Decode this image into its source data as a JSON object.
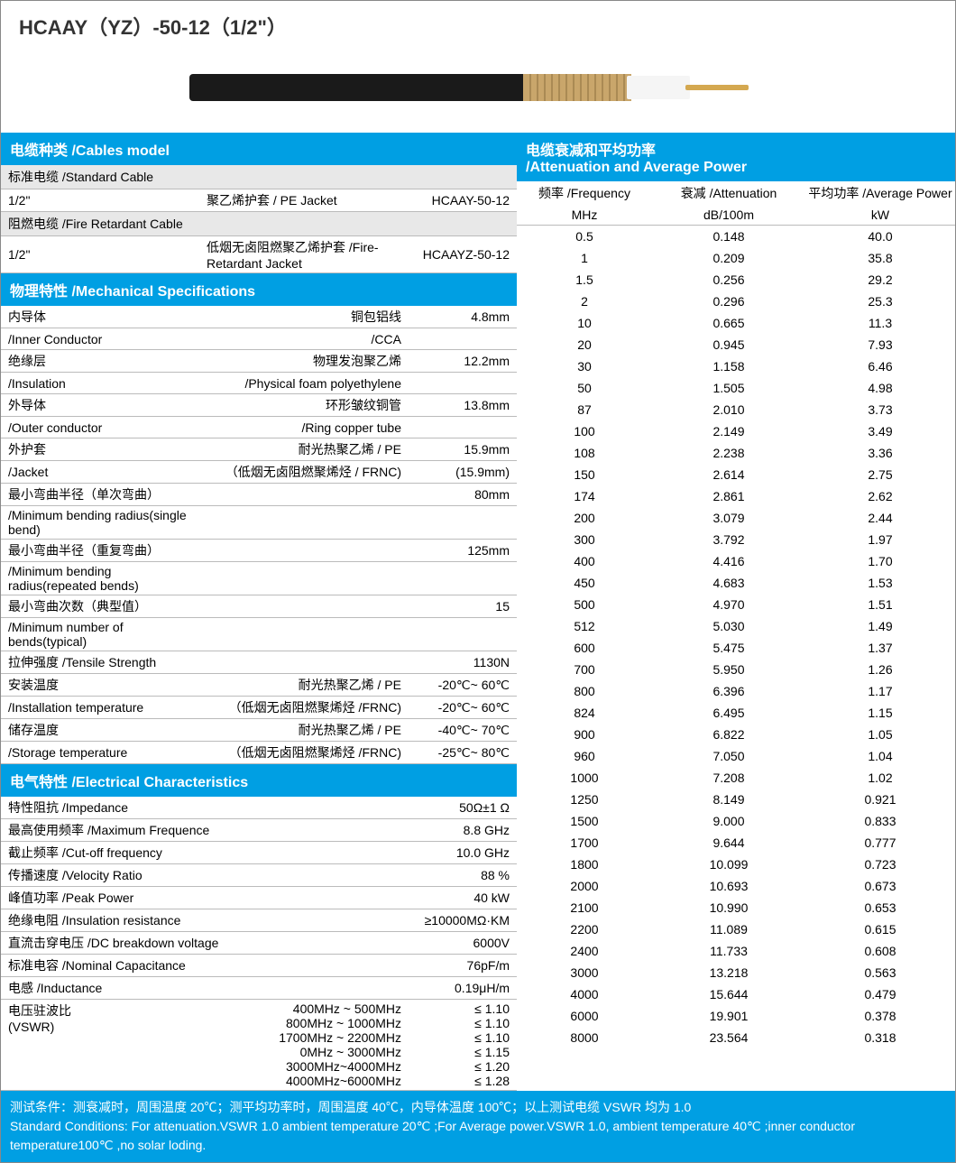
{
  "title": "HCAAY（YZ）-50-12（1/2\"）",
  "cables_header": "电缆种类 /Cables model",
  "std_cable": "标准电缆 /Standard Cable",
  "std_row": {
    "size": "1/2\"",
    "jacket": "聚乙烯护套 / PE Jacket",
    "model": "HCAAY-50-12"
  },
  "fire_cable": "阻燃电缆 /Fire Retardant Cable",
  "fire_row": {
    "size": "1/2\"",
    "jacket": "低烟无卤阻燃聚乙烯护套 /Fire-Retardant Jacket",
    "model": "HCAAYZ-50-12"
  },
  "mech_header": "物理特性 /Mechanical Specifications",
  "mech": [
    {
      "l": "内导体",
      "m": "铜包铝线",
      "r": "4.8mm"
    },
    {
      "l": "/Inner Conductor",
      "m": "/CCA",
      "r": ""
    },
    {
      "l": "绝缘层",
      "m": "物理发泡聚乙烯",
      "r": "12.2mm"
    },
    {
      "l": "/Insulation",
      "m": "/Physical foam polyethylene",
      "r": ""
    },
    {
      "l": "外导体",
      "m": "环形皱纹铜管",
      "r": "13.8mm"
    },
    {
      "l": "/Outer conductor",
      "m": "/Ring copper tube",
      "r": ""
    },
    {
      "l": "外护套",
      "m": "耐光热聚乙烯 / PE",
      "r": "15.9mm"
    },
    {
      "l": "/Jacket",
      "m": "（低烟无卤阻燃聚烯烃 / FRNC)",
      "r": "(15.9mm)"
    },
    {
      "l": "最小弯曲半径（单次弯曲）",
      "m": "",
      "r": "80mm"
    },
    {
      "l": "/Minimum bending radius(single bend)",
      "m": "",
      "r": ""
    },
    {
      "l": "最小弯曲半径（重复弯曲）",
      "m": "",
      "r": "125mm"
    },
    {
      "l": "/Minimum bending radius(repeated bends)",
      "m": "",
      "r": ""
    },
    {
      "l": "最小弯曲次数（典型值）",
      "m": "",
      "r": "15"
    },
    {
      "l": "/Minimum number of bends(typical)",
      "m": "",
      "r": ""
    },
    {
      "l": "拉伸强度 /Tensile  Strength",
      "m": "",
      "r": "1130N"
    },
    {
      "l": "安装温度",
      "m": "耐光热聚乙烯 / PE",
      "r": "-20℃~ 60℃"
    },
    {
      "l": "/Installation temperature",
      "m": "（低烟无卤阻燃聚烯烃 /FRNC)",
      "r": "-20℃~ 60℃"
    },
    {
      "l": "储存温度",
      "m": "耐光热聚乙烯 / PE",
      "r": "-40℃~ 70℃"
    },
    {
      "l": "/Storage temperature",
      "m": "（低烟无卤阻燃聚烯烃 /FRNC)",
      "r": "-25℃~ 80℃"
    }
  ],
  "elec_header": "电气特性 /Electrical Characteristics",
  "elec": [
    {
      "l": "特性阻抗 /Impedance",
      "r": "50Ω±1 Ω"
    },
    {
      "l": "最高使用频率 /Maximum Frequence",
      "r": "8.8 GHz"
    },
    {
      "l": "截止频率 /Cut-off frequency",
      "r": "10.0 GHz"
    },
    {
      "l": "传播速度 /Velocity Ratio",
      "r": "88 %"
    },
    {
      "l": "峰值功率 /Peak Power",
      "r": "40 kW"
    },
    {
      "l": "绝缘电阻 /Insulation resistance",
      "r": "≥10000MΩ·KM"
    },
    {
      "l": "直流击穿电压 /DC breakdown voltage",
      "r": "6000V"
    },
    {
      "l": "标准电容 /Nominal Capacitance",
      "r": "76pF/m"
    },
    {
      "l": "电感 /Inductance",
      "r": "0.19μH/m"
    }
  ],
  "vswr_label1": "电压驻波比",
  "vswr_label2": "(VSWR)",
  "vswr": [
    {
      "f": "400MHz ~ 500MHz",
      "v": "≤ 1.10"
    },
    {
      "f": "800MHz ~ 1000MHz",
      "v": "≤ 1.10"
    },
    {
      "f": "1700MHz ~ 2200MHz",
      "v": "≤ 1.10"
    },
    {
      "f": "0MHz ~ 3000MHz",
      "v": "≤ 1.15"
    },
    {
      "f": "3000MHz~4000MHz",
      "v": "≤ 1.20"
    },
    {
      "f": "4000MHz~6000MHz",
      "v": "≤ 1.28"
    }
  ],
  "att_header": "电缆衰减和平均功率\n/Attenuation and Average Power",
  "att_cols": {
    "c1": "频率 /Frequency",
    "c2": "衰减 /Attenuation",
    "c3": "平均功率 /Average Power"
  },
  "att_units": {
    "c1": "MHz",
    "c2": "dB/100m",
    "c3": "kW"
  },
  "att_data": [
    [
      "0.5",
      "0.148",
      "40.0"
    ],
    [
      "1",
      "0.209",
      "35.8"
    ],
    [
      "1.5",
      "0.256",
      "29.2"
    ],
    [
      "2",
      "0.296",
      "25.3"
    ],
    [
      "10",
      "0.665",
      "11.3"
    ],
    [
      "20",
      "0.945",
      "7.93"
    ],
    [
      "30",
      "1.158",
      "6.46"
    ],
    [
      "50",
      "1.505",
      "4.98"
    ],
    [
      "87",
      "2.010",
      "3.73"
    ],
    [
      "100",
      "2.149",
      "3.49"
    ],
    [
      "108",
      "2.238",
      "3.36"
    ],
    [
      "150",
      "2.614",
      "2.75"
    ],
    [
      "174",
      "2.861",
      "2.62"
    ],
    [
      "200",
      "3.079",
      "2.44"
    ],
    [
      "300",
      "3.792",
      "1.97"
    ],
    [
      "400",
      "4.416",
      "1.70"
    ],
    [
      "450",
      "4.683",
      "1.53"
    ],
    [
      "500",
      "4.970",
      "1.51"
    ],
    [
      "512",
      "5.030",
      "1.49"
    ],
    [
      "600",
      "5.475",
      "1.37"
    ],
    [
      "700",
      "5.950",
      "1.26"
    ],
    [
      "800",
      "6.396",
      "1.17"
    ],
    [
      "824",
      "6.495",
      "1.15"
    ],
    [
      "900",
      "6.822",
      "1.05"
    ],
    [
      "960",
      "7.050",
      "1.04"
    ],
    [
      "1000",
      "7.208",
      "1.02"
    ],
    [
      "1250",
      "8.149",
      "0.921"
    ],
    [
      "1500",
      "9.000",
      "0.833"
    ],
    [
      "1700",
      "9.644",
      "0.777"
    ],
    [
      "1800",
      "10.099",
      "0.723"
    ],
    [
      "2000",
      "10.693",
      "0.673"
    ],
    [
      "2100",
      "10.990",
      "0.653"
    ],
    [
      "2200",
      "11.089",
      "0.615"
    ],
    [
      "2400",
      "11.733",
      "0.608"
    ],
    [
      "3000",
      "13.218",
      "0.563"
    ],
    [
      "4000",
      "15.644",
      "0.479"
    ],
    [
      "6000",
      "19.901",
      "0.378"
    ],
    [
      "8000",
      "23.564",
      "0.318"
    ]
  ],
  "footer1": "测试条件：测衰减时，周围温度 20℃；测平均功率时，周围温度 40℃，内导体温度 100℃；以上测试电缆 VSWR 均为 1.0",
  "footer2": "Standard Conditions: For attenuation.VSWR 1.0 ambient temperature 20℃ ;For Average power.VSWR 1.0, ambient temperature 40℃ ;inner conductor temperature100℃ ,no solar loding.",
  "colors": {
    "header_bg": "#009fe3",
    "border": "#888"
  }
}
